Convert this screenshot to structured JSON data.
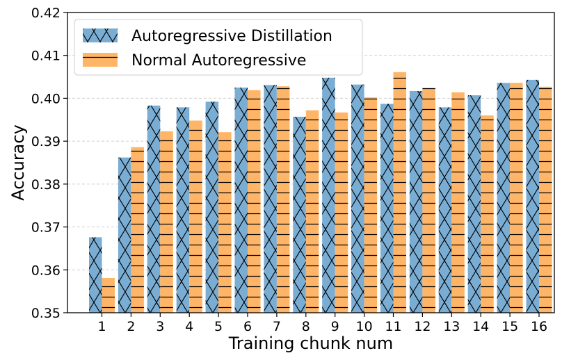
{
  "chart_data": {
    "type": "bar",
    "xlabel": "Training chunk num",
    "ylabel": "Accuracy",
    "categories": [
      "1",
      "2",
      "3",
      "4",
      "5",
      "6",
      "7",
      "8",
      "9",
      "10",
      "11",
      "12",
      "13",
      "14",
      "15",
      "16"
    ],
    "ylim": [
      0.35,
      0.42
    ],
    "yticks": [
      "0.35",
      "0.36",
      "0.37",
      "0.38",
      "0.39",
      "0.40",
      "0.41",
      "0.42"
    ],
    "grid": "horizontal dashed",
    "legend_position": "top-left",
    "series": [
      {
        "name": "Autoregressive Distillation",
        "color": "#7aadd4",
        "hatch": "x",
        "values": [
          0.3676,
          0.3862,
          0.3983,
          0.3979,
          0.3992,
          0.4025,
          0.4031,
          0.3957,
          0.4048,
          0.4032,
          0.3987,
          0.4017,
          0.3979,
          0.4007,
          0.4036,
          0.4043
        ]
      },
      {
        "name": "Normal Autoregressive",
        "color": "#ffb567",
        "hatch": "-",
        "values": [
          0.3581,
          0.3886,
          0.3923,
          0.3948,
          0.3921,
          0.4019,
          0.4028,
          0.3972,
          0.3967,
          0.4002,
          0.4061,
          0.4024,
          0.4014,
          0.396,
          0.4036,
          0.4027
        ]
      }
    ]
  }
}
